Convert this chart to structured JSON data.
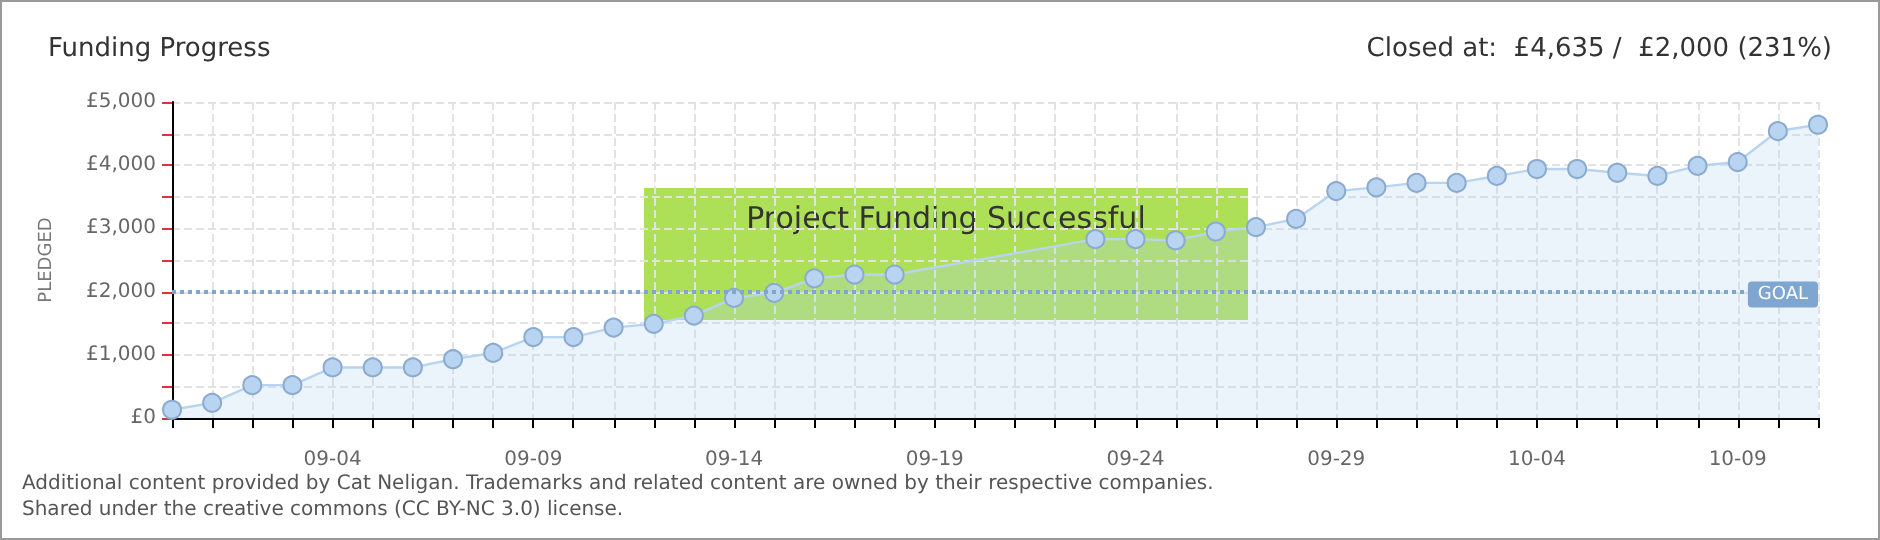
{
  "chart_data": {
    "type": "area",
    "title": "Funding Progress",
    "subtitle": "Closed at:  £4,635 /  £2,000 (231%)",
    "ylabel": "PLEDGED",
    "categories": [
      null,
      null,
      null,
      null,
      "09-04",
      null,
      null,
      null,
      null,
      "09-09",
      null,
      null,
      null,
      null,
      "09-14",
      null,
      null,
      null,
      null,
      "09-19",
      null,
      null,
      null,
      null,
      "09-24",
      null,
      null,
      null,
      null,
      "09-29",
      null,
      null,
      null,
      null,
      "10-04",
      null,
      null,
      null,
      null,
      "10-09",
      null,
      null
    ],
    "series": [
      {
        "color": "#b8d4f0",
        "values": [
          130,
          240,
          520,
          520,
          800,
          800,
          800,
          930,
          1030,
          1280,
          1280,
          1430,
          1490,
          1620,
          1900,
          1980,
          2210,
          2270,
          2270,
          null,
          null,
          null,
          null,
          2830,
          2830,
          2810,
          2950,
          3020,
          3150,
          3590,
          3650,
          3720,
          3720,
          3830,
          3940,
          3940,
          3880,
          3830,
          3990,
          4050,
          4540,
          4640
        ]
      }
    ],
    "ylim": [
      0,
      5000
    ],
    "yticks": [
      {
        "value": 0,
        "label": "£0"
      },
      {
        "value": 500,
        "label": null
      },
      {
        "value": 1000,
        "label": "£1,000"
      },
      {
        "value": 1500,
        "label": null
      },
      {
        "value": 2000,
        "label": "£2,000"
      },
      {
        "value": 2500,
        "label": null
      },
      {
        "value": 3000,
        "label": "£3,000"
      },
      {
        "value": 3500,
        "label": null
      },
      {
        "value": 4000,
        "label": "£4,000"
      },
      {
        "value": 4500,
        "label": null
      },
      {
        "value": 5000,
        "label": "£5,000"
      }
    ],
    "grid": true,
    "marker": "circle",
    "ref_lines": [
      {
        "axis": "y",
        "value": 2000,
        "label": "GOAL",
        "color": "#7fa6d0",
        "line_style": "dotted"
      }
    ],
    "annotations": [
      "Project Funding Successful",
      "Additional content provided by Cat Neligan. Trademarks and related content are owned by their respective companies.",
      "Shared under the creative commons (CC BY-NC 3.0) license."
    ]
  }
}
